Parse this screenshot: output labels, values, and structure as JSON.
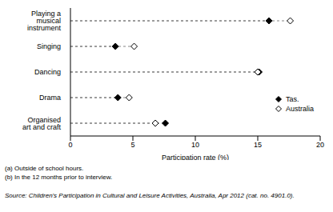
{
  "chart_data": {
    "type": "dot",
    "orientation": "horizontal",
    "categories": [
      "Playing a musical instrument",
      "Singing",
      "Dancing",
      "Drama",
      "Organised art and craft"
    ],
    "series": [
      {
        "name": "Tas.",
        "color": "#000000",
        "marker": "diamond",
        "values": [
          15.9,
          3.6,
          15.1,
          3.8,
          7.6
        ]
      },
      {
        "name": "Australia",
        "color": "#000000",
        "marker": "open_diamond",
        "values": [
          17.6,
          5.1,
          15.0,
          4.7,
          6.8
        ]
      }
    ],
    "x_label": "Participation rate (%)",
    "xlim": [
      0,
      20
    ],
    "xticks": [
      0,
      5,
      10,
      15,
      20
    ],
    "grid": false,
    "legend": "lower right",
    "footnotes": [
      "(a) Outside of school hours.",
      "(b) In the 12 months prior to interview."
    ],
    "source": "Source: Children's Participation in Cultural and Leisure Activities, Australia, Apr 2012 (cat. no. 4901.0)."
  }
}
